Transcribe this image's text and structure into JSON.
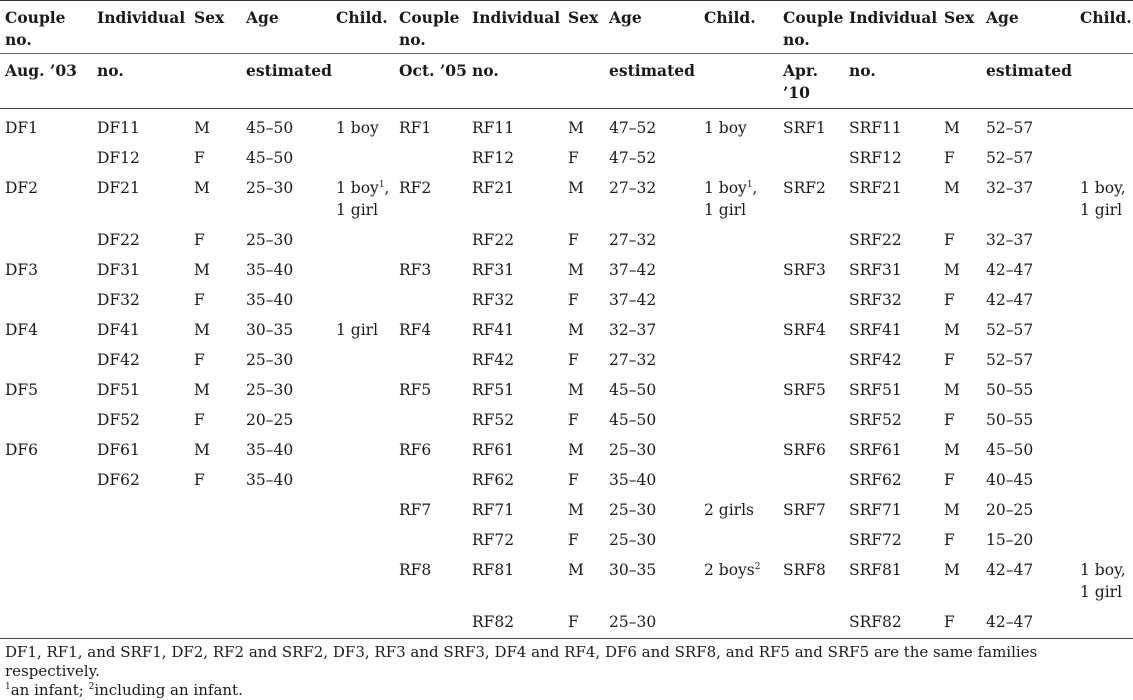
{
  "headers": {
    "row1": [
      "Couple no.",
      "Individual",
      "Sex",
      "Age",
      "Child.",
      "Couple no.",
      "Individual",
      "Sex",
      "Age",
      "Child.",
      "Couple no.",
      "Individual",
      "Sex",
      "Age",
      "Child."
    ],
    "row2": [
      "Aug. ’03",
      "no.",
      "",
      "estimated",
      "",
      "Oct. ’05",
      "no.",
      "",
      "estimated",
      "",
      "Apr. ’10",
      "no.",
      "",
      "estimated",
      ""
    ]
  },
  "rows": [
    {
      "c": [
        "DF1",
        "DF11",
        "M",
        "45–50",
        "1 boy",
        "RF1",
        "RF11",
        "M",
        "47–52",
        "1 boy",
        "SRF1",
        "SRF11",
        "M",
        "52–57",
        ""
      ]
    },
    {
      "c": [
        "",
        "DF12",
        "F",
        "45–50",
        "",
        "",
        "RF12",
        "F",
        "47–52",
        "",
        "",
        "SRF12",
        "F",
        "52–57",
        ""
      ]
    },
    {
      "c": [
        "DF2",
        "DF21",
        "M",
        "25–30",
        "1 boy",
        "RF2",
        "RF21",
        "M",
        "27–32",
        "1 boy",
        "SRF2",
        "SRF21",
        "M",
        "32–37",
        "1 boy,"
      ],
      "c2": [
        "",
        "",
        "",
        "",
        "1 girl",
        "",
        "",
        "",
        "",
        "1 girl",
        "",
        "",
        "",
        "",
        "1 girl"
      ],
      "sup": {
        "4": "1",
        "9": "1"
      },
      "comma": {
        "4": ",",
        "9": ","
      }
    },
    {
      "c": [
        "",
        "DF22",
        "F",
        "25–30",
        "",
        "",
        "RF22",
        "F",
        "27–32",
        "",
        "",
        "SRF22",
        "F",
        "32–37",
        ""
      ]
    },
    {
      "c": [
        "DF3",
        "DF31",
        "M",
        "35–40",
        "",
        "RF3",
        "RF31",
        "M",
        "37–42",
        "",
        "SRF3",
        "SRF31",
        "M",
        "42–47",
        ""
      ]
    },
    {
      "c": [
        "",
        "DF32",
        "F",
        "35–40",
        "",
        "",
        "RF32",
        "F",
        "37–42",
        "",
        "",
        "SRF32",
        "F",
        "42–47",
        ""
      ]
    },
    {
      "c": [
        "DF4",
        "DF41",
        "M",
        "30–35",
        "1 girl",
        "RF4",
        "RF41",
        "M",
        "32–37",
        "",
        "SRF4",
        "SRF41",
        "M",
        "52–57",
        ""
      ]
    },
    {
      "c": [
        "",
        "DF42",
        "F",
        "25–30",
        "",
        "",
        "RF42",
        "F",
        "27–32",
        "",
        "",
        "SRF42",
        "F",
        "52–57",
        ""
      ]
    },
    {
      "c": [
        "DF5",
        "DF51",
        "M",
        "25–30",
        "",
        "RF5",
        "RF51",
        "M",
        "45–50",
        "",
        "SRF5",
        "SRF51",
        "M",
        "50–55",
        ""
      ]
    },
    {
      "c": [
        "",
        "DF52",
        "F",
        "20–25",
        "",
        "",
        "RF52",
        "F",
        "45–50",
        "",
        "",
        "SRF52",
        "F",
        "50–55",
        ""
      ]
    },
    {
      "c": [
        "DF6",
        "DF61",
        "M",
        "35–40",
        "",
        "RF6",
        "RF61",
        "M",
        "25–30",
        "",
        "SRF6",
        "SRF61",
        "M",
        "45–50",
        ""
      ]
    },
    {
      "c": [
        "",
        "DF62",
        "F",
        "35–40",
        "",
        "",
        "RF62",
        "F",
        "35–40",
        "",
        "",
        "SRF62",
        "F",
        "40–45",
        ""
      ]
    },
    {
      "c": [
        "",
        "",
        "",
        "",
        "",
        "RF7",
        "RF71",
        "M",
        "25–30",
        "2 girls",
        "SRF7",
        "SRF71",
        "M",
        "20–25",
        ""
      ]
    },
    {
      "c": [
        "",
        "",
        "",
        "",
        "",
        "",
        "RF72",
        "F",
        "25–30",
        "",
        "",
        "SRF72",
        "F",
        "15–20",
        ""
      ]
    },
    {
      "c": [
        "",
        "",
        "",
        "",
        "",
        "RF8",
        "RF81",
        "M",
        "30–35",
        "2 boys",
        "SRF8",
        "SRF81",
        "M",
        "42–47",
        "1 boy,"
      ],
      "c2": [
        "",
        "",
        "",
        "",
        "",
        "",
        "",
        "",
        "",
        "",
        "",
        "",
        "",
        "",
        "1 girl"
      ],
      "sup": {
        "9": "2"
      }
    },
    {
      "c": [
        "",
        "",
        "",
        "",
        "",
        "",
        "RF82",
        "F",
        "25–30",
        "",
        "",
        "SRF82",
        "F",
        "42–47",
        ""
      ]
    }
  ],
  "notes": {
    "line1": "DF1, RF1, and SRF1, DF2, RF2 and SRF2, DF3, RF3 and SRF3, DF4 and RF4, DF6 and SRF8, and RF5 and SRF5 are the same families respectively.",
    "fn1_mark": "1",
    "fn1_text": "an infant; ",
    "fn2_mark": "2",
    "fn2_text": "including an infant."
  }
}
